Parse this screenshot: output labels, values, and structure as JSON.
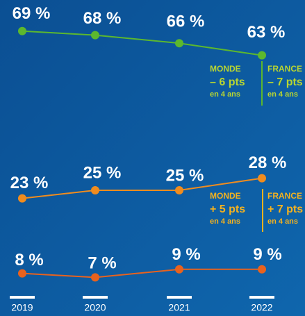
{
  "chart_data": {
    "type": "line",
    "categories": [
      "2019",
      "2020",
      "2021",
      "2022"
    ],
    "series": [
      {
        "color": "#5cb82e",
        "values": [
          69,
          68,
          66,
          63
        ],
        "value_labels": [
          "69 %",
          "68 %",
          "66 %",
          "63 %"
        ]
      },
      {
        "color": "#f08c1e",
        "values": [
          23,
          25,
          25,
          28
        ],
        "value_labels": [
          "23 %",
          "25 %",
          "25 %",
          "28 %"
        ]
      },
      {
        "color": "#e8621e",
        "values": [
          8,
          7,
          9,
          9
        ],
        "value_labels": [
          "8 %",
          "7 %",
          "9 %",
          "9 %"
        ]
      }
    ],
    "annotations": [
      {
        "label": "MONDE",
        "value": "– 6 pts",
        "note": "en 4 ans",
        "color": "#b8d531"
      },
      {
        "label": "FRANCE",
        "value": "– 7 pts",
        "note": "en 4 ans",
        "color": "#b8d531"
      },
      {
        "label": "MONDE",
        "value": "+ 5 pts",
        "note": "en 4 ans",
        "color": "#f5b21e"
      },
      {
        "label": "FRANCE",
        "value": "+ 7 pts",
        "note": "en 4 ans",
        "color": "#f5b21e"
      }
    ]
  }
}
